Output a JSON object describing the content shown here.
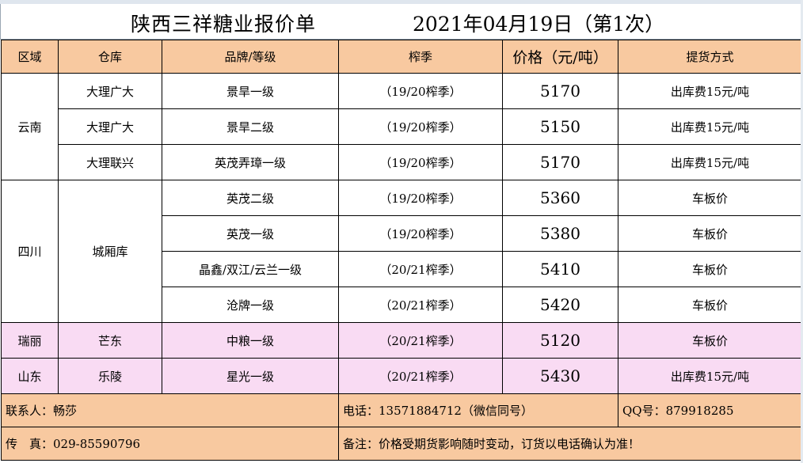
{
  "title": "陕西三祥糖业报价单",
  "date": "2021年04月19日（第1次）",
  "headers": {
    "region": "区域",
    "warehouse": "仓库",
    "brand": "品牌/等级",
    "season": "榨季",
    "price": "价格（元/吨）",
    "delivery": "提货方式"
  },
  "regions": {
    "yunnan": "云南",
    "sichuan": "四川",
    "ruili": "瑞丽",
    "shandong": "山东"
  },
  "warehouses": {
    "dali_guangda": "大理广大",
    "dali_lianxing": "大理联兴",
    "chengxiang": "城厢库",
    "mangdong": "芒东",
    "leling": "乐陵"
  },
  "rows": [
    {
      "brand": "景旱一级",
      "season": "（19/20榨季）",
      "price": "5170",
      "delivery": "出库费15元/吨"
    },
    {
      "brand": "景旱二级",
      "season": "（19/20榨季）",
      "price": "5150",
      "delivery": "出库费15元/吨"
    },
    {
      "brand": "英茂弄璋一级",
      "season": "（19/20榨季）",
      "price": "5170",
      "delivery": "出库费15元/吨"
    },
    {
      "brand": "英茂二级",
      "season": "（19/20榨季）",
      "price": "5360",
      "delivery": "车板价"
    },
    {
      "brand": "英茂一级",
      "season": "（19/20榨季）",
      "price": "5380",
      "delivery": "车板价"
    },
    {
      "brand": "晶鑫/双江/云兰一级",
      "season": "（20/21榨季）",
      "price": "5410",
      "delivery": "车板价"
    },
    {
      "brand": "沧牌一级",
      "season": "（20/21榨季）",
      "price": "5420",
      "delivery": "车板价"
    },
    {
      "brand": "中粮一级",
      "season": "（20/21榨季）",
      "price": "5120",
      "delivery": "车板价"
    },
    {
      "brand": "星光一级",
      "season": "（20/21榨季）",
      "price": "5430",
      "delivery": "出库费15元/吨"
    }
  ],
  "footer": {
    "contact": "联系人：畅莎",
    "phone": "电话：13571884712（微信同号）",
    "qq": "QQ号：879918285",
    "fax": "传　真：029-85590796",
    "note": "备注：价格受期货影响随时变动，订货以电话确认为准！"
  }
}
